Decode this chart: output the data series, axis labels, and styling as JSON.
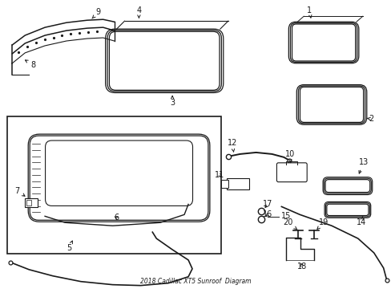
{
  "title": "2018 Cadillac XT5 Sunroof  Diagram",
  "bg_color": "#ffffff",
  "line_color": "#1a1a1a",
  "label_fontsize": 7.0,
  "fig_width": 4.89,
  "fig_height": 3.6,
  "dpi": 100
}
